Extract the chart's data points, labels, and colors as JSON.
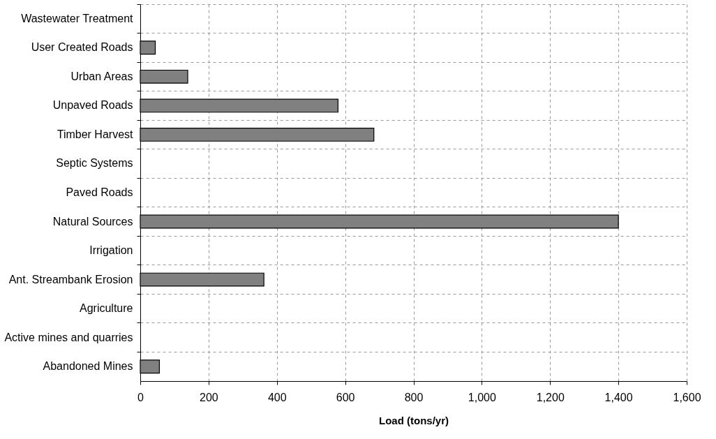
{
  "chart_data": {
    "type": "bar",
    "orientation": "horizontal",
    "xlabel": "Load (tons/yr)",
    "categories": [
      "Wastewater Treatment",
      "User Created Roads",
      "Urban Areas",
      "Unpaved Roads",
      "Timber Harvest",
      "Septic Systems",
      "Paved Roads",
      "Natural Sources",
      "Irrigation",
      "Ant. Streambank Erosion",
      "Agriculture",
      "Active mines and quarries",
      "Abandoned Mines"
    ],
    "values": [
      null,
      44,
      139,
      579,
      684,
      null,
      null,
      1400,
      null,
      362,
      null,
      null,
      56
    ],
    "color": "#808080",
    "xlim": [
      0,
      1600
    ],
    "xticks": [
      {
        "value": 0,
        "label": "0"
      },
      {
        "value": 200,
        "label": "200"
      },
      {
        "value": 400,
        "label": "400"
      },
      {
        "value": 600,
        "label": "600"
      },
      {
        "value": 800,
        "label": "800"
      },
      {
        "value": 1000,
        "label": "1,000"
      },
      {
        "value": 1200,
        "label": "1,200"
      },
      {
        "value": 1400,
        "label": "1,400"
      },
      {
        "value": 1600,
        "label": "1,600"
      }
    ],
    "grid": true
  }
}
